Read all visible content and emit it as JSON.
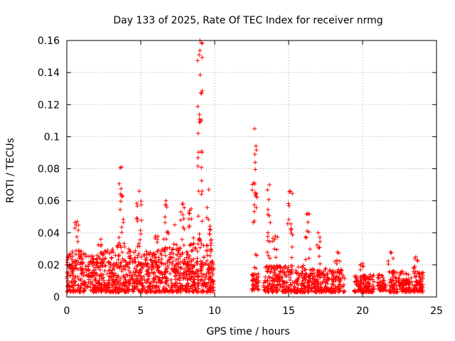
{
  "chart_data": {
    "type": "scatter",
    "title": "Day 133 of 2025, Rate Of TEC Index for receiver nrmg",
    "xlabel": "GPS time / hours",
    "ylabel": "ROTI / TECUs",
    "xlim": [
      0,
      25
    ],
    "ylim": [
      0,
      0.16
    ],
    "x_ticks": [
      "0",
      "5",
      "10",
      "15",
      "20",
      "25"
    ],
    "y_ticks": [
      "0",
      "0.02",
      "0.04",
      "0.06",
      "0.08",
      "0.1",
      "0.12",
      "0.14",
      "0.16"
    ],
    "grid": true,
    "marker": "plus",
    "marker_color": "#ff0000",
    "series": [
      {
        "density_profile": [
          {
            "x": 0.0,
            "y_max": 0.03,
            "spike": 0.0
          },
          {
            "x": 0.5,
            "y_max": 0.028,
            "spike": 0.0
          },
          {
            "x": 0.7,
            "y_max": 0.03,
            "spike": 0.047
          },
          {
            "x": 1.5,
            "y_max": 0.026,
            "spike": 0.0
          },
          {
            "x": 2.3,
            "y_max": 0.028,
            "spike": 0.036
          },
          {
            "x": 3.0,
            "y_max": 0.03,
            "spike": 0.0
          },
          {
            "x": 3.7,
            "y_max": 0.035,
            "spike": 0.081
          },
          {
            "x": 4.3,
            "y_max": 0.03,
            "spike": 0.0
          },
          {
            "x": 4.9,
            "y_max": 0.033,
            "spike": 0.066
          },
          {
            "x": 5.5,
            "y_max": 0.028,
            "spike": 0.0
          },
          {
            "x": 6.0,
            "y_max": 0.03,
            "spike": 0.038
          },
          {
            "x": 6.7,
            "y_max": 0.032,
            "spike": 0.06
          },
          {
            "x": 7.3,
            "y_max": 0.03,
            "spike": 0.045
          },
          {
            "x": 7.8,
            "y_max": 0.032,
            "spike": 0.058
          },
          {
            "x": 8.4,
            "y_max": 0.035,
            "spike": 0.055
          },
          {
            "x": 9.0,
            "y_max": 0.038,
            "spike": 0.16
          },
          {
            "x": 9.6,
            "y_max": 0.035,
            "spike": 0.067
          },
          {
            "x": 9.9,
            "y_max": 0.025,
            "spike": 0.0
          }
        ],
        "segments": [
          {
            "x_start": 0.0,
            "x_end": 9.95,
            "y_min": 0.003,
            "dense_max": 0.022
          },
          {
            "x_start": 12.5,
            "x_end": 13.0,
            "y_min": 0.004,
            "dense_max": 0.015
          },
          {
            "x_start": 13.3,
            "x_end": 16.0,
            "y_min": 0.003,
            "dense_max": 0.02
          },
          {
            "x_start": 16.0,
            "x_end": 18.8,
            "y_min": 0.003,
            "dense_max": 0.018
          },
          {
            "x_start": 19.4,
            "x_end": 20.8,
            "y_min": 0.003,
            "dense_max": 0.014
          },
          {
            "x_start": 21.0,
            "x_end": 21.6,
            "y_min": 0.004,
            "dense_max": 0.014
          },
          {
            "x_start": 21.8,
            "x_end": 24.1,
            "y_min": 0.003,
            "dense_max": 0.016
          }
        ],
        "spikes": [
          {
            "x": 12.7,
            "y_max": 0.105
          },
          {
            "x": 13.7,
            "y_max": 0.07
          },
          {
            "x": 14.1,
            "y_max": 0.038
          },
          {
            "x": 15.1,
            "y_max": 0.066
          },
          {
            "x": 16.3,
            "y_max": 0.052
          },
          {
            "x": 17.0,
            "y_max": 0.04
          },
          {
            "x": 18.3,
            "y_max": 0.028
          },
          {
            "x": 20.0,
            "y_max": 0.021
          },
          {
            "x": 21.9,
            "y_max": 0.028
          },
          {
            "x": 23.6,
            "y_max": 0.025
          }
        ]
      }
    ]
  }
}
